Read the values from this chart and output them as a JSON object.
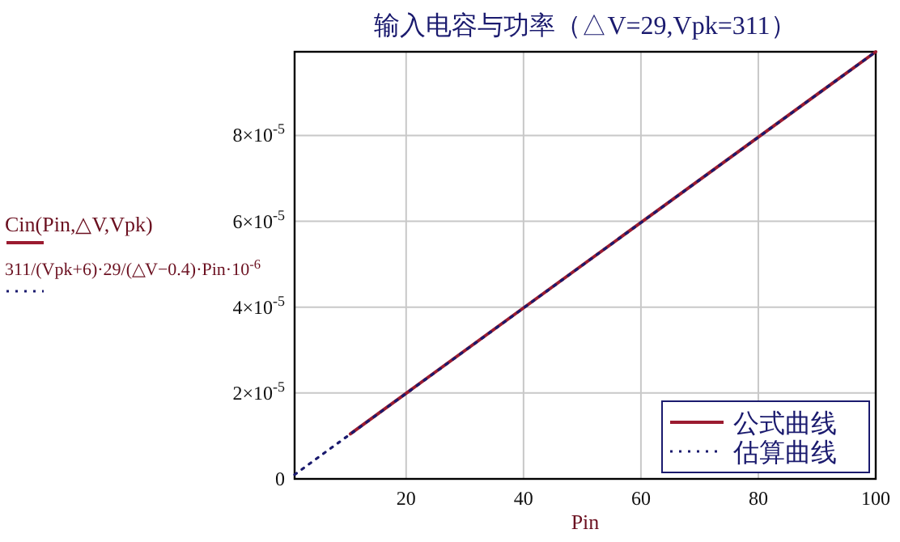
{
  "chart_data": {
    "type": "line",
    "title": "输入电容与功率（△V=29,Vpk=311）",
    "xlabel": "Pin",
    "ylabel": "Cin(Pin,△V,Vpk)",
    "annotations": [
      "311/(Vpk+6)·29/(△V−0.4)·Pin·10$^{-6}$"
    ],
    "xlim": [
      1,
      100
    ],
    "ylim": [
      0,
      9.95e-05
    ],
    "xticks": [
      20,
      40,
      60,
      80,
      100
    ],
    "yticks": [
      0,
      {
        "value": 2e-05,
        "label": "2×10$^{-5}$"
      },
      {
        "value": 4e-05,
        "label": "4×10$^{-5}$"
      },
      {
        "value": 6e-05,
        "label": "6×10$^{-5}$"
      },
      {
        "value": 8e-05,
        "label": "8×10$^{-5}$"
      }
    ],
    "grid": true,
    "legend": "bottom right",
    "series": [
      {
        "name": "公式曲线",
        "color": "#9b1b30",
        "line_style": "solid",
        "x": [
          10.5,
          100
        ],
        "values": [
          1.05e-05,
          9.95e-05
        ]
      },
      {
        "name": "估算曲线",
        "color": "#1a1a6e",
        "line_style": "dotted",
        "x": [
          1,
          100
        ],
        "values": [
          1e-06,
          9.95e-05
        ]
      }
    ]
  }
}
